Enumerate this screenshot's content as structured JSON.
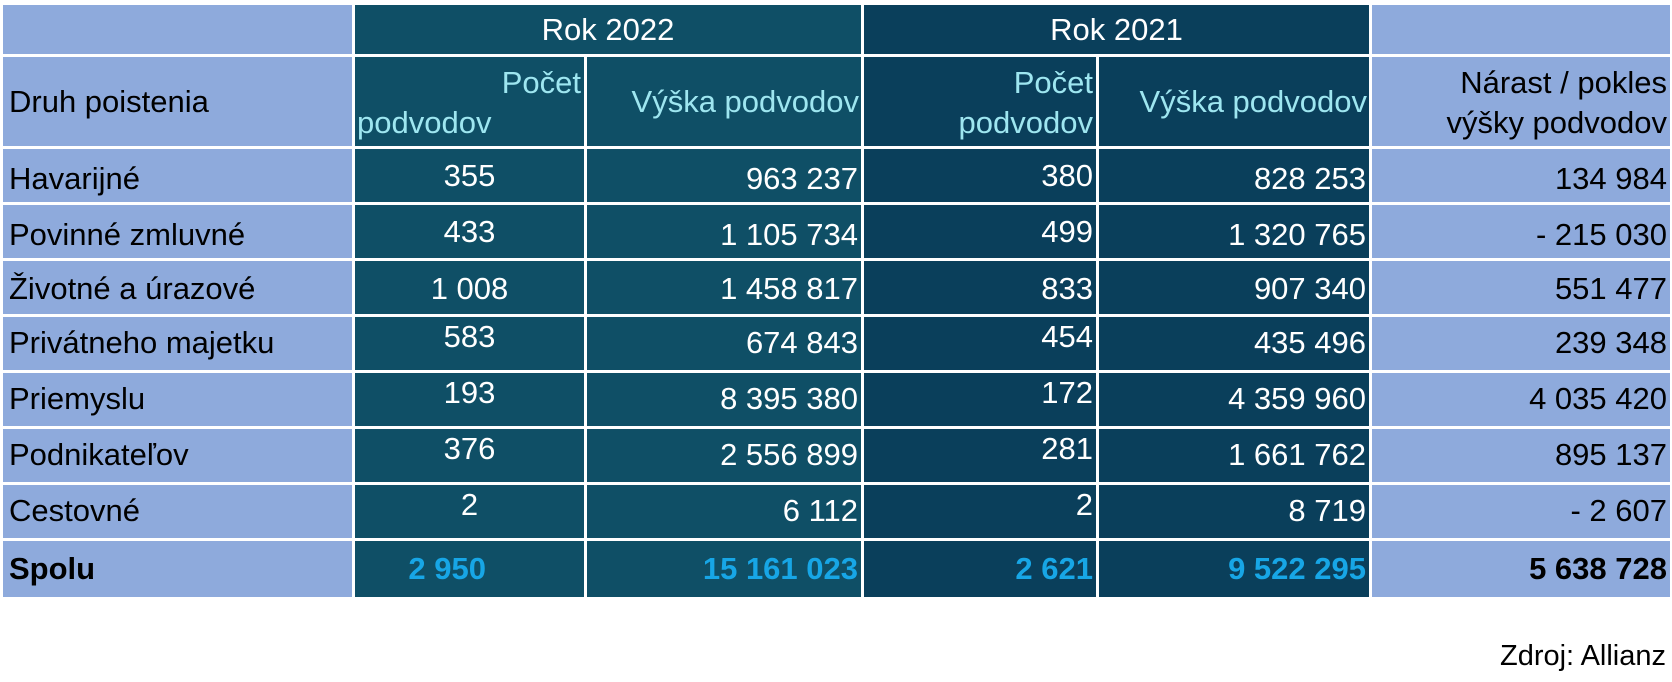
{
  "header": {
    "year_2022": "Rok 2022",
    "year_2021": "Rok 2021",
    "col_type": "Druh poistenia",
    "count_label_line1": "Počet",
    "count_label_line2": "podvodov",
    "amount_label": "Výška podvodov",
    "change_label_line1": "Nárast / pokles",
    "change_label_line2": "výšky podvodov"
  },
  "rows": [
    {
      "type": "Havarijné",
      "count_2022": "355",
      "amount_2022": "963 237",
      "count_2021": "380",
      "amount_2021": "828 253",
      "change": "134 984"
    },
    {
      "type": "Povinné zmluvné",
      "count_2022": "433",
      "amount_2022": "1 105 734",
      "count_2021": "499",
      "amount_2021": "1 320 765",
      "change": "- 215 030"
    },
    {
      "type": "Životné a úrazové",
      "count_2022": "1 008",
      "amount_2022": "1 458 817",
      "count_2021": "833",
      "amount_2021": "907 340",
      "change": "551 477"
    },
    {
      "type": "Privátneho majetku",
      "count_2022": "583",
      "amount_2022": "674 843",
      "count_2021": "454",
      "amount_2021": "435 496",
      "change": "239 348"
    },
    {
      "type": "Priemyslu",
      "count_2022": "193",
      "amount_2022": "8 395 380",
      "count_2021": "172",
      "amount_2021": "4 359 960",
      "change": "4 035 420"
    },
    {
      "type": "Podnikateľov",
      "count_2022": "376",
      "amount_2022": "2 556 899",
      "count_2021": "281",
      "amount_2021": "1 661 762",
      "change": "895 137"
    },
    {
      "type": "Cestovné",
      "count_2022": "2",
      "amount_2022": "6 112",
      "count_2021": "2",
      "amount_2021": "8 719",
      "change": "- 2 607"
    }
  ],
  "total": {
    "type": "Spolu",
    "count_2022": "2 950",
    "amount_2022": "15 161 023",
    "count_2021": "2 621",
    "amount_2021": "9 522 295",
    "change": "5 638 728"
  },
  "source": "Zdroj: Allianz",
  "colors": {
    "side_bg": "#8eaadc",
    "year2022_bg": "#0f4f66",
    "year2021_bg": "#0a3f5b",
    "total_accent": "#17a6e6"
  }
}
